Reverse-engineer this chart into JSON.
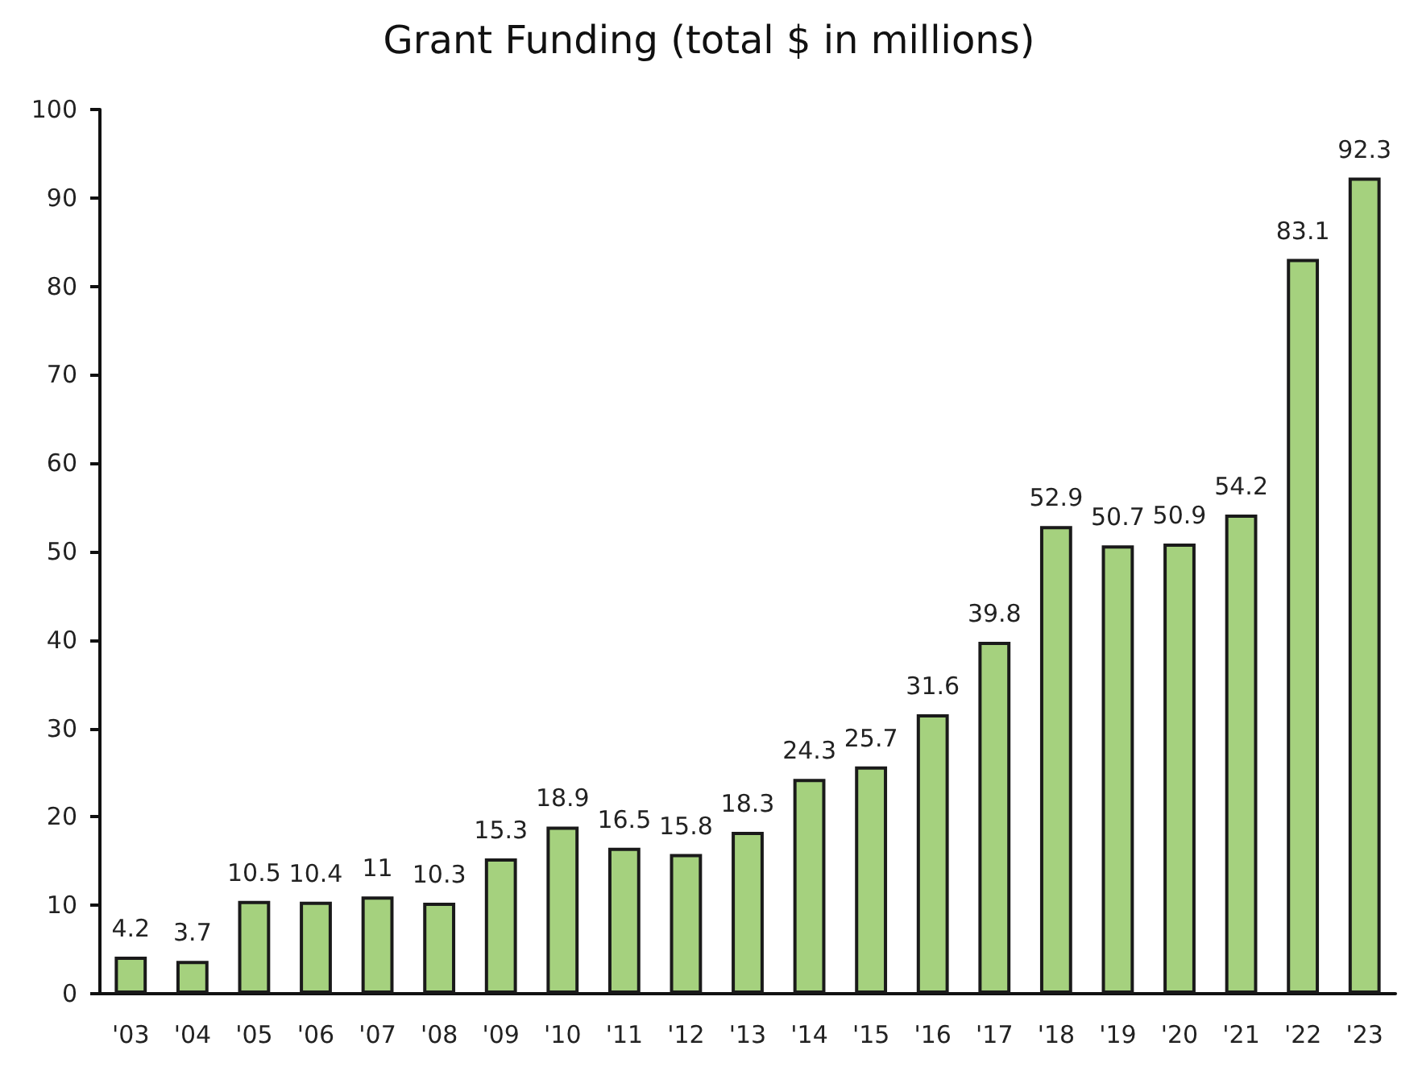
{
  "chart_data": {
    "type": "bar",
    "title": "Grant Funding (total $ in millions)",
    "categories": [
      "'03",
      "'04",
      "'05",
      "'06",
      "'07",
      "'08",
      "'09",
      "'10",
      "'11",
      "'12",
      "'13",
      "'14",
      "'15",
      "'16",
      "'17",
      "'18",
      "'19",
      "'20",
      "'21",
      "'22",
      "'23"
    ],
    "values": [
      4.2,
      3.7,
      10.5,
      10.4,
      11,
      10.3,
      15.3,
      18.9,
      16.5,
      15.8,
      18.3,
      24.3,
      25.7,
      31.6,
      39.8,
      52.9,
      50.7,
      50.9,
      54.2,
      83.1,
      92.3
    ],
    "color": "#a5d17e",
    "ylim": [
      0,
      100
    ],
    "yticks": [
      0,
      10,
      20,
      30,
      40,
      50,
      60,
      70,
      80,
      90,
      100
    ],
    "grid": false,
    "data_labels": true
  }
}
